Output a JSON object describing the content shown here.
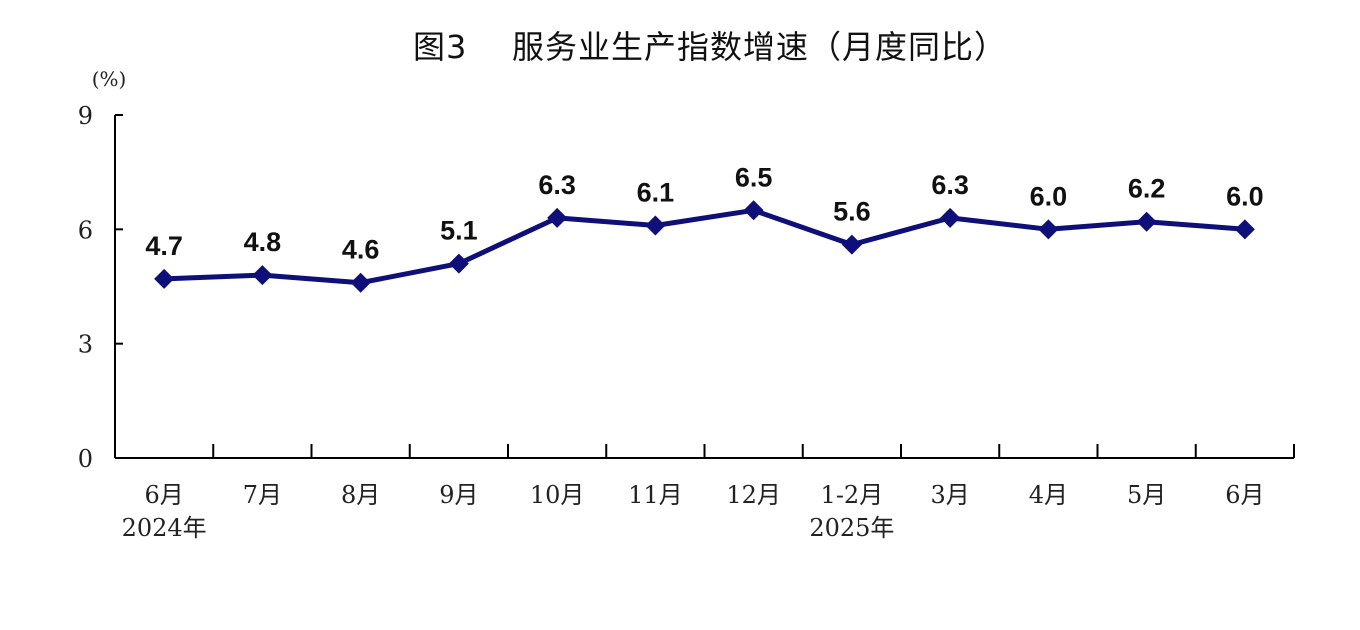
{
  "chart_data": {
    "type": "line",
    "title": "图3    服务业生产指数增速（月度同比）",
    "ylabel": "(%)",
    "xlabel": "",
    "ylim": [
      0,
      9
    ],
    "yticks": [
      "0",
      "3",
      "6",
      "9"
    ],
    "grid": false,
    "legend": "none",
    "categories": [
      "6月",
      "7月",
      "8月",
      "9月",
      "10月",
      "11月",
      "12月",
      "1-2月",
      "3月",
      "4月",
      "5月",
      "6月"
    ],
    "year_labels": [
      {
        "category_index": 0,
        "text": "2024年"
      },
      {
        "category_index": 7,
        "text": "2025年"
      }
    ],
    "series": [
      {
        "values": [
          4.7,
          4.8,
          4.6,
          5.1,
          6.3,
          6.1,
          6.5,
          5.6,
          6.3,
          6.0,
          6.2,
          6.0
        ],
        "labels": [
          "4.7",
          "4.8",
          "4.6",
          "5.1",
          "6.3",
          "6.1",
          "6.5",
          "5.6",
          "6.3",
          "6.0",
          "6.2",
          "6.0"
        ],
        "color": "#0f0f7a",
        "marker": "diamond"
      }
    ],
    "colors": {
      "line": "#0f0f7a",
      "axis": "#000000",
      "text": "#111111"
    }
  }
}
